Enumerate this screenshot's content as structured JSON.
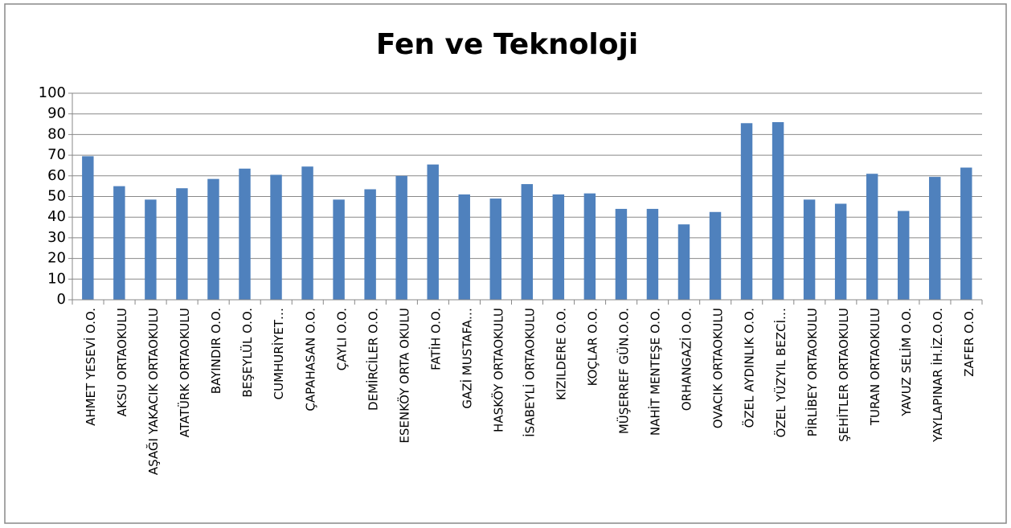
{
  "chart_data": {
    "type": "bar",
    "title": "Fen ve Teknoloji",
    "categories": [
      "AHMET YESEVİ O.O.",
      "AKSU ORTAOKULU",
      "AŞAĞI YAKACIK ORTAOKULU",
      "ATATÜRK ORTAOKULU",
      "BAYINDIR O.O.",
      "BEŞEYLÜL O.O.",
      "CUMHURİYET…",
      "ÇAPAHASAN O.O.",
      "ÇAYLI O.O.",
      "DEMİRCİLER O.O.",
      "ESENKÖY ORTA OKULU",
      "FATİH O.O.",
      "GAZİ MUSTAFA…",
      "HASKÖY ORTAOKULU",
      "İSABEYLİ ORTAOKULU",
      "KIZILDERE O.O.",
      "KOÇLAR O.O.",
      "MÜŞERREF GÜN.O.O.",
      "NAHİT MENTEŞE O.O.",
      "ORHANGAZİ O.O.",
      "OVACIK ORTAOKULU",
      "ÖZEL AYDINLIK O.O.",
      "ÖZEL YÜZYIL BEZCİ…",
      "PİRLİBEY ORTAOKULU",
      "ŞEHİTLER ORTAOKULU",
      "TURAN ORTAOKULU",
      "YAVUZ SELİM O.O.",
      "YAYLAPINAR İH.İZ.O.O.",
      "ZAFER O.O."
    ],
    "values": [
      69.5,
      55,
      48.5,
      54,
      58.5,
      63.5,
      60.5,
      64.5,
      48.5,
      53.5,
      60,
      65.5,
      51,
      49,
      56,
      51,
      51.5,
      44,
      44,
      36.5,
      42.5,
      85.5,
      86,
      48.5,
      46.5,
      61,
      43,
      59.5,
      64
    ],
    "color": "#4f81bd",
    "ylim": [
      0,
      100
    ],
    "yticks": [
      0,
      10,
      20,
      30,
      40,
      50,
      60,
      70,
      80,
      90,
      100
    ],
    "grid": true
  }
}
